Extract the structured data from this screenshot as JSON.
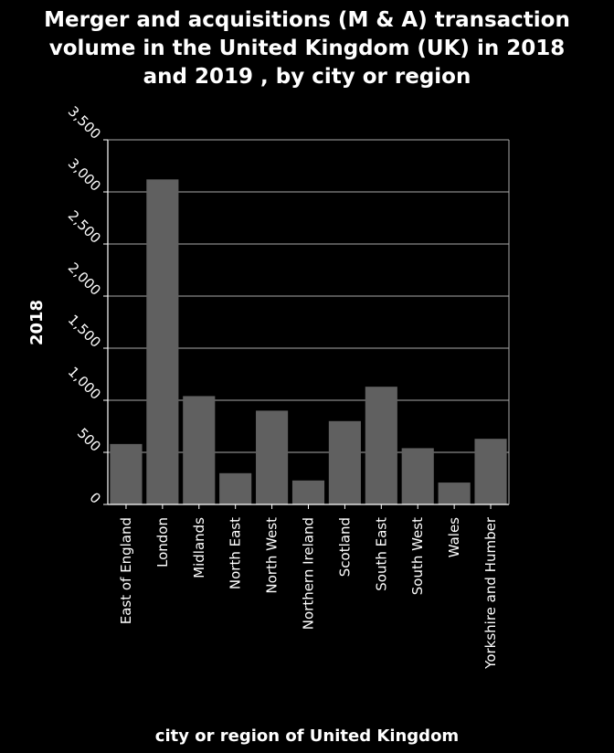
{
  "chart_data": {
    "type": "bar",
    "title_lines": [
      "Merger and acquisitions (M & A) transaction",
      "volume in the United Kingdom (UK) in 2018",
      "and 2019 , by city or region"
    ],
    "xlabel": "city or region of United Kingdom",
    "ylabel": "2018",
    "ylim": [
      0,
      3500
    ],
    "yticks": [
      "0",
      "500",
      "1,000",
      "1,500",
      "2,000",
      "2,500",
      "3,000",
      "3,500"
    ],
    "categories": [
      "East of England",
      "London",
      "Midlands",
      "North East",
      "North West",
      "Northern Ireland",
      "Scotland",
      "South East",
      "South West",
      "Wales",
      "Yorkshire and Humber"
    ],
    "values": [
      580,
      3120,
      1040,
      300,
      900,
      230,
      800,
      1130,
      540,
      210,
      630
    ],
    "grid": true,
    "colors": {
      "background": "#000000",
      "bar": "#606060",
      "grid": "#aaaaaa",
      "text": "#ffffff"
    }
  }
}
